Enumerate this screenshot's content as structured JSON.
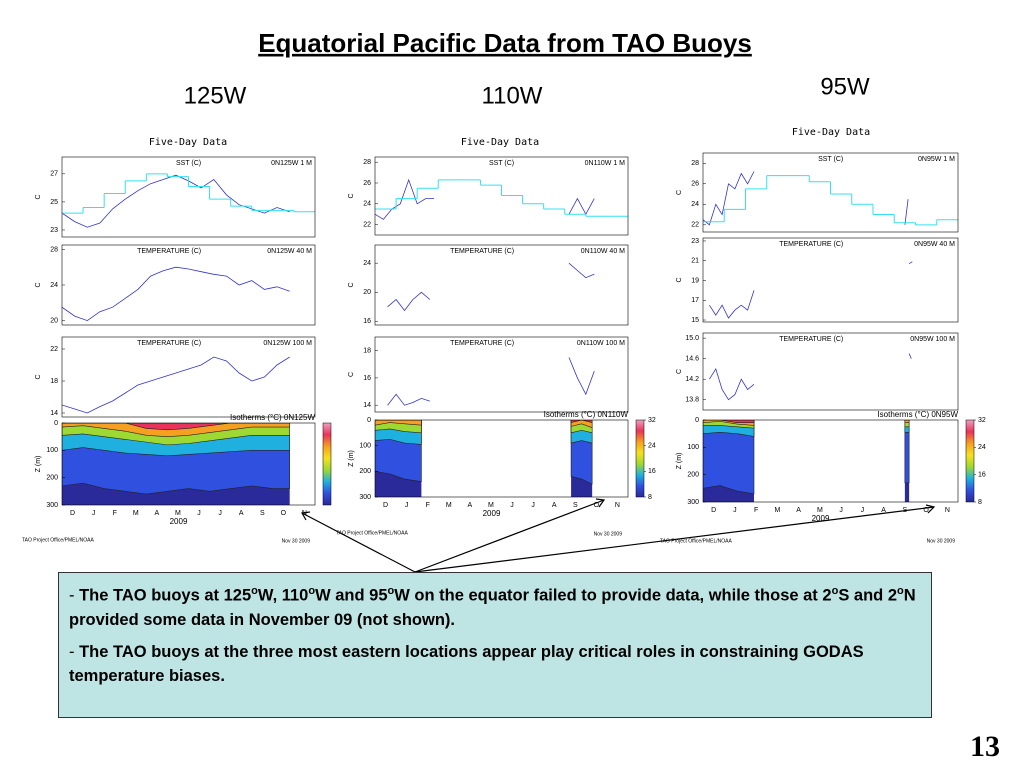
{
  "title": "Equatorial Pacific Data from TAO Buoys",
  "page_number": "13",
  "panels": [
    {
      "position": "125W",
      "header": "Five-Day Data",
      "credit": "TAO Project Office/PMEL/NOAA",
      "date": "Nov 30 2009"
    },
    {
      "position": "110W",
      "header": "Five-Day Data",
      "credit": "TAO Project Office/PMEL/NOAA",
      "date": "Nov 30 2009"
    },
    {
      "position": "95W",
      "header": "Five-Day Data",
      "credit": "TAO Project Office/PMEL/NOAA",
      "date": "Nov 30 2009"
    }
  ],
  "notes": [
    {
      "dash": "-",
      "parts": [
        "The TAO buoys at 125",
        "o",
        "W, 110",
        "o",
        "W and 95",
        "o",
        "W on the equator failed to provide data, while those at 2",
        "o",
        "S and 2",
        "o",
        "N provided some data in November 09 (not shown)."
      ]
    },
    {
      "dash": "-",
      "parts": [
        "The TAO buoys at the three most eastern locations appear play critical roles in constraining GODAS temperature biases."
      ]
    }
  ],
  "chart_data": [
    {
      "type": "line",
      "title": "SST (C)",
      "station": "0N125W  1 M",
      "ylabel": "C",
      "xlim": [
        0,
        12
      ],
      "ylim": [
        22.5,
        28.2
      ],
      "yticks": [
        23,
        25,
        27
      ],
      "series": [
        {
          "color": "#3333cc",
          "x": [
            0,
            0.6,
            1.2,
            1.8,
            2.4,
            3,
            3.6,
            4.2,
            4.8,
            5.4,
            6,
            6.6,
            7.2,
            7.8,
            8.4,
            9,
            9.6,
            10.2,
            10.8
          ],
          "values": [
            24.2,
            23.6,
            23.2,
            23.5,
            24.5,
            25.2,
            25.8,
            26.3,
            26.6,
            26.9,
            26.5,
            26,
            26.6,
            25.5,
            24.8,
            24.5,
            24.2,
            24.6,
            24.3
          ]
        },
        {
          "color": "#33e0f0",
          "step": true,
          "x": [
            0,
            1,
            2,
            3,
            4,
            5,
            6,
            7,
            8,
            9,
            10,
            11
          ],
          "values": [
            24.2,
            24.6,
            25.6,
            26.5,
            27,
            26.8,
            26.1,
            25.2,
            24.7,
            24.4,
            24.4,
            24.3
          ]
        }
      ]
    },
    {
      "type": "line",
      "title": "TEMPERATURE (C)",
      "station": "0N125W  40 M",
      "ylabel": "C",
      "xlim": [
        0,
        12
      ],
      "ylim": [
        19.5,
        28.5
      ],
      "yticks": [
        20,
        24,
        28
      ],
      "series": [
        {
          "color": "#3333cc",
          "x": [
            0,
            0.6,
            1.2,
            1.8,
            2.4,
            3,
            3.6,
            4.2,
            4.8,
            5.4,
            6,
            6.6,
            7.2,
            7.8,
            8.4,
            9,
            9.6,
            10.2,
            10.8
          ],
          "values": [
            21.5,
            20.5,
            20,
            21,
            21.5,
            22.5,
            23.5,
            25,
            25.6,
            26,
            25.8,
            25.5,
            25.2,
            25,
            24,
            24.5,
            23.5,
            23.8,
            23.3
          ]
        }
      ]
    },
    {
      "type": "line",
      "title": "TEMPERATURE (C)",
      "station": "0N125W 100 M",
      "ylabel": "C",
      "xlim": [
        0,
        12
      ],
      "ylim": [
        13.5,
        23.5
      ],
      "yticks": [
        14,
        18,
        22
      ],
      "series": [
        {
          "color": "#3333cc",
          "x": [
            0,
            0.6,
            1.2,
            1.8,
            2.4,
            3,
            3.6,
            4.2,
            4.8,
            5.4,
            6,
            6.6,
            7.2,
            7.8,
            8.4,
            9,
            9.6,
            10.2,
            10.8
          ],
          "values": [
            15,
            14.5,
            14,
            14.8,
            15.5,
            16.5,
            17.5,
            18,
            18.5,
            19,
            19.5,
            20,
            21,
            20.5,
            19,
            18,
            18.5,
            20,
            21
          ]
        }
      ]
    },
    {
      "type": "contour",
      "title": "Isotherms (°C) 0N125W",
      "ylabel": "Z (m)",
      "xlabel": "2009",
      "categories": [
        "D",
        "J",
        "F",
        "M",
        "A",
        "M",
        "J",
        "J",
        "A",
        "S",
        "O",
        "N"
      ],
      "xlim": [
        0,
        12
      ],
      "ylim": [
        0,
        300
      ],
      "y_inverted": true,
      "yticks": [
        0,
        100,
        200,
        300
      ],
      "clim": [
        8,
        32
      ],
      "x": [
        0,
        1,
        2,
        3,
        4,
        5,
        6,
        7,
        8,
        9,
        10,
        10.8
      ],
      "levels": [
        26,
        24,
        20,
        16,
        12
      ],
      "colors": [
        "#e8345a",
        "#f5a020",
        "#9ed832",
        "#20b0e0",
        "#3050e0"
      ],
      "base_color": "#2a2a9a",
      "depths": [
        [
          0,
          0,
          0,
          0,
          20,
          25,
          20,
          10,
          0,
          0,
          0,
          0
        ],
        [
          15,
          10,
          20,
          30,
          45,
          50,
          45,
          35,
          25,
          15,
          15,
          15
        ],
        [
          45,
          40,
          50,
          60,
          70,
          80,
          75,
          65,
          55,
          45,
          45,
          45
        ],
        [
          100,
          90,
          100,
          110,
          115,
          120,
          115,
          110,
          105,
          100,
          100,
          100
        ],
        [
          230,
          220,
          240,
          250,
          260,
          250,
          240,
          250,
          240,
          230,
          240,
          240
        ]
      ]
    },
    {
      "type": "line",
      "title": "SST (C)",
      "station": "0N110W  1 M",
      "ylabel": "C",
      "xlim": [
        0,
        12
      ],
      "ylim": [
        21,
        28.5
      ],
      "yticks": [
        22,
        24,
        26,
        28
      ],
      "series": [
        {
          "color": "#3333cc",
          "x": [
            0,
            0.4,
            0.8,
            1.2,
            1.6,
            2,
            2.4,
            2.8,
            null,
            9.2,
            9.6,
            10,
            10.4
          ],
          "values": [
            23,
            22.5,
            23.5,
            24,
            26.3,
            24,
            24.5,
            24.5,
            null,
            23,
            24.5,
            23,
            24.5
          ]
        },
        {
          "color": "#33e0f0",
          "step": true,
          "x": [
            0,
            1,
            2,
            3,
            4,
            5,
            6,
            7,
            8,
            9,
            10,
            11
          ],
          "values": [
            23.5,
            24.5,
            25.5,
            26.3,
            26.3,
            25.8,
            24.8,
            24,
            23.5,
            23,
            22.8,
            22.8
          ]
        }
      ]
    },
    {
      "type": "line",
      "title": "TEMPERATURE (C)",
      "station": "0N110W  40 M",
      "ylabel": "C",
      "xlim": [
        0,
        12
      ],
      "ylim": [
        15.5,
        26.5
      ],
      "yticks": [
        16,
        20,
        24
      ],
      "series": [
        {
          "color": "#3333cc",
          "x": [
            0.6,
            1,
            1.4,
            1.8,
            2.2,
            2.6,
            null,
            9.2,
            9.6,
            10,
            10.4
          ],
          "values": [
            18,
            19,
            17.5,
            19,
            20,
            19,
            null,
            24,
            23,
            22,
            22.5
          ]
        }
      ]
    },
    {
      "type": "line",
      "title": "TEMPERATURE (C)",
      "station": "0N110W 100 M",
      "ylabel": "C",
      "xlim": [
        0,
        12
      ],
      "ylim": [
        13.5,
        19
      ],
      "yticks": [
        14,
        16,
        18
      ],
      "series": [
        {
          "color": "#3333cc",
          "x": [
            0.6,
            1,
            1.4,
            1.8,
            2.2,
            2.6,
            null,
            9.2,
            9.6,
            10,
            10.4
          ],
          "values": [
            14,
            14.8,
            14,
            14.2,
            14.5,
            14.3,
            null,
            17.5,
            16,
            14.8,
            16.5
          ]
        }
      ]
    },
    {
      "type": "contour",
      "title": "Isotherms (°C) 0N110W",
      "ylabel": "Z (m)",
      "xlabel": "2009",
      "categories": [
        "D",
        "J",
        "F",
        "M",
        "A",
        "M",
        "J",
        "J",
        "A",
        "S",
        "O",
        "N"
      ],
      "xlim": [
        0,
        12
      ],
      "ylim": [
        0,
        300
      ],
      "y_inverted": true,
      "yticks": [
        0,
        100,
        200,
        300
      ],
      "clim": [
        8,
        32
      ],
      "cticks": [
        8,
        16,
        24,
        32
      ],
      "x": [
        0,
        0.7,
        1.4,
        2.2,
        null,
        9.3,
        9.8,
        10.3
      ],
      "levels": [
        26,
        24,
        20,
        16,
        12
      ],
      "colors": [
        "#e8345a",
        "#f5a020",
        "#9ed832",
        "#20b0e0",
        "#3050e0"
      ],
      "base_color": "#2a2a9a",
      "depths": [
        [
          0,
          0,
          0,
          0,
          null,
          10,
          0,
          10
        ],
        [
          20,
          10,
          15,
          20,
          null,
          25,
          15,
          30
        ],
        [
          40,
          35,
          45,
          50,
          null,
          50,
          40,
          50
        ],
        [
          80,
          75,
          90,
          95,
          null,
          90,
          80,
          90
        ],
        [
          200,
          210,
          230,
          240,
          null,
          220,
          230,
          250
        ]
      ]
    },
    {
      "type": "line",
      "title": "SST (C)",
      "station": "0N95W  1 M",
      "ylabel": "C",
      "xlim": [
        0,
        12
      ],
      "ylim": [
        21.3,
        29
      ],
      "yticks": [
        22,
        24,
        26,
        28
      ],
      "series": [
        {
          "color": "#3333cc",
          "x": [
            0,
            0.3,
            0.6,
            0.9,
            1.2,
            1.5,
            1.8,
            2.1,
            2.4,
            null,
            9.5,
            9.65
          ],
          "values": [
            22.5,
            22,
            24,
            23,
            26,
            25.5,
            27,
            26,
            27.2,
            null,
            22,
            24.5
          ]
        },
        {
          "color": "#33e0f0",
          "step": true,
          "x": [
            0,
            1,
            2,
            3,
            4,
            5,
            6,
            7,
            8,
            9,
            10,
            11
          ],
          "values": [
            22.3,
            23.5,
            25.5,
            26.8,
            26.8,
            26.2,
            25,
            24,
            23,
            22.2,
            22,
            22.5
          ]
        }
      ]
    },
    {
      "type": "line",
      "title": "TEMPERATURE (C)",
      "station": "0N95W  40 M",
      "ylabel": "C",
      "xlim": [
        0,
        12
      ],
      "ylim": [
        14.8,
        23.3
      ],
      "yticks": [
        15,
        17,
        19,
        21,
        23
      ],
      "series": [
        {
          "color": "#3333cc",
          "x": [
            0.3,
            0.6,
            0.9,
            1.2,
            1.5,
            1.8,
            2.1,
            2.4,
            null,
            9.7,
            9.85
          ],
          "values": [
            16.5,
            15.5,
            16.5,
            15.2,
            16,
            16.5,
            16,
            18,
            null,
            20.7,
            20.9
          ]
        }
      ]
    },
    {
      "type": "line",
      "title": "TEMPERATURE (C)",
      "station": "0N95W 100 M",
      "ylabel": "C",
      "xlim": [
        0,
        12
      ],
      "ylim": [
        13.6,
        15.1
      ],
      "yticks": [
        13.8,
        14.2,
        14.6,
        {
          "value": 15,
          "label": "15.0"
        }
      ],
      "series": [
        {
          "color": "#3333cc",
          "x": [
            0.3,
            0.6,
            0.9,
            1.2,
            1.5,
            1.8,
            2.1,
            2.4,
            null,
            9.7,
            9.8
          ],
          "values": [
            14.2,
            14.4,
            14,
            13.8,
            13.9,
            14.2,
            14,
            14.1,
            null,
            14.7,
            14.6
          ]
        }
      ]
    },
    {
      "type": "contour",
      "title": "Isotherms (°C) 0N95W",
      "ylabel": "Z (m)",
      "xlabel": "2009",
      "categories": [
        "D",
        "J",
        "F",
        "M",
        "A",
        "M",
        "J",
        "J",
        "A",
        "S",
        "O",
        "N"
      ],
      "xlim": [
        0,
        12
      ],
      "ylim": [
        0,
        300
      ],
      "y_inverted": true,
      "yticks": [
        0,
        100,
        200,
        300
      ],
      "clim": [
        8,
        32
      ],
      "cticks": [
        8,
        16,
        24,
        32
      ],
      "x": [
        0,
        0.8,
        1.6,
        2.4,
        null,
        9.5,
        9.7
      ],
      "levels": [
        26,
        24,
        20,
        16,
        12
      ],
      "colors": [
        "#e8345a",
        "#f5a020",
        "#9ed832",
        "#20b0e0",
        "#3050e0"
      ],
      "base_color": "#2a2a9a",
      "depths": [
        [
          0,
          0,
          10,
          10,
          null,
          0,
          0
        ],
        [
          10,
          5,
          15,
          20,
          null,
          10,
          10
        ],
        [
          20,
          20,
          25,
          30,
          null,
          25,
          25
        ],
        [
          50,
          45,
          50,
          60,
          null,
          45,
          45
        ],
        [
          250,
          240,
          260,
          270,
          null,
          230,
          230
        ]
      ]
    }
  ]
}
